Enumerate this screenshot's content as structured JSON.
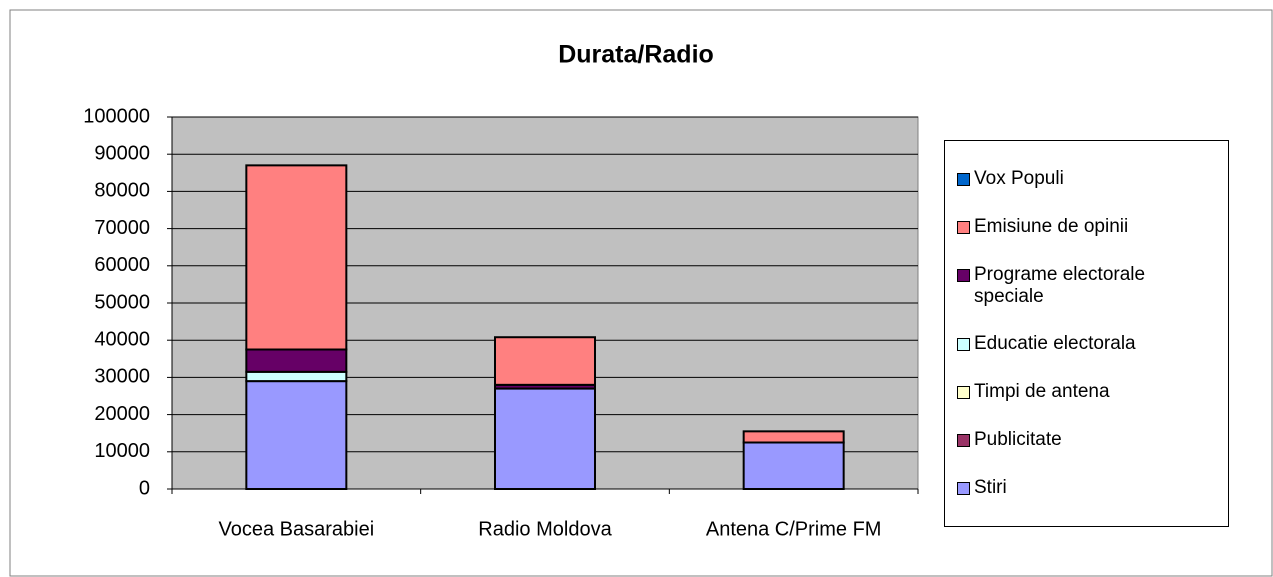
{
  "chart_data": {
    "type": "stacked_bar",
    "title": "Durata/Radio",
    "categories": [
      "Vocea Basarabiei",
      "Radio Moldova",
      "Antena C/Prime FM"
    ],
    "series": [
      {
        "name": "Stiri",
        "color": "#9999ff",
        "values": [
          29000,
          27000,
          12500
        ]
      },
      {
        "name": "Publicitate",
        "color": "#993366",
        "values": [
          0,
          0,
          0
        ]
      },
      {
        "name": "Timpi de antena",
        "color": "#ffffcc",
        "values": [
          0,
          0,
          0
        ]
      },
      {
        "name": "Educatie electorala",
        "color": "#ccffff",
        "values": [
          2500,
          0,
          0
        ]
      },
      {
        "name": "Programe electorale speciale",
        "color": "#660066",
        "values": [
          6000,
          1000,
          0
        ]
      },
      {
        "name": "Emisiune de opinii",
        "color": "#ff8080",
        "values": [
          49500,
          12800,
          3000
        ]
      },
      {
        "name": "Vox Populi",
        "color": "#0066cc",
        "values": [
          0,
          0,
          0
        ]
      }
    ],
    "ylim": [
      0,
      100000
    ],
    "yticks": [
      0,
      10000,
      20000,
      30000,
      40000,
      50000,
      60000,
      70000,
      80000,
      90000,
      100000
    ],
    "grid": true,
    "legend": "right"
  }
}
